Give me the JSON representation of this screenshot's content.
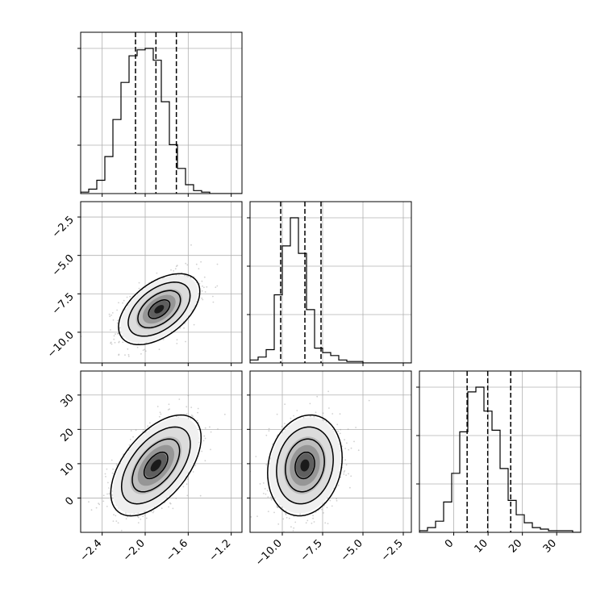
{
  "chart_data": {
    "type": "corner",
    "grid": true,
    "columns": [
      {
        "ticks": [
          "−2.4",
          "−2.0",
          "−1.6",
          "−1.2"
        ],
        "tick_values": [
          -2.4,
          -2.0,
          -1.6,
          -1.2
        ],
        "range": [
          -2.6,
          -1.1
        ]
      },
      {
        "ticks": [
          "−10.0",
          "−7.5",
          "−5.0",
          "−2.5"
        ],
        "tick_values": [
          -10.0,
          -7.5,
          -5.0,
          -2.5
        ],
        "range": [
          -12.0,
          -2.0
        ]
      },
      {
        "ticks": [
          "0",
          "10",
          "20",
          "30"
        ],
        "tick_values": [
          0,
          10,
          20,
          30
        ],
        "range": [
          -10,
          37
        ]
      }
    ],
    "row_tick_labels": [
      {
        "row": 1,
        "ticks": [
          "−2.5",
          "−5.0",
          "−7.5",
          "−10.0"
        ],
        "tick_values": [
          -2.5,
          -5.0,
          -7.5,
          -10.0
        ],
        "range": [
          -12.0,
          -1.5
        ]
      },
      {
        "row": 2,
        "ticks": [
          "30",
          "20",
          "10",
          "0"
        ],
        "tick_values": [
          30,
          20,
          10,
          0
        ],
        "range": [
          -10,
          37
        ]
      }
    ],
    "marginals": [
      {
        "param_index": 0,
        "bin_start": -2.6,
        "bin_width": 0.075,
        "counts": [
          1,
          3,
          9,
          25,
          50,
          75,
          93,
          97,
          98,
          90,
          62,
          33,
          17,
          6,
          2,
          1,
          0,
          0,
          0,
          0
        ],
        "quantiles": [
          -2.09,
          -1.9,
          -1.71
        ]
      },
      {
        "param_index": 1,
        "bin_start": -12.0,
        "bin_width": 0.5,
        "counts": [
          2,
          4,
          9,
          46,
          79,
          98,
          74,
          36,
          10,
          7,
          5,
          2,
          1,
          1,
          0,
          0,
          0,
          0,
          0,
          0
        ],
        "quantiles": [
          -10.1,
          -8.6,
          -7.6
        ]
      },
      {
        "param_index": 2,
        "bin_start": -10,
        "bin_width": 2.35,
        "counts": [
          1,
          3,
          7,
          19,
          37,
          63,
          88,
          91,
          76,
          64,
          40,
          20,
          11,
          6,
          3,
          2,
          1,
          1,
          1,
          0
        ],
        "quantiles": [
          3.9,
          9.9,
          16.6
        ]
      }
    ],
    "joint": [
      {
        "row": 1,
        "col": 0,
        "mean": [
          -1.87,
          -8.5
        ],
        "sd": [
          0.18,
          1.1
        ],
        "corr": 0.5
      },
      {
        "row": 2,
        "col": 0,
        "mean": [
          -1.9,
          9.5
        ],
        "sd": [
          0.2,
          7.0
        ],
        "corr": 0.55
      },
      {
        "row": 2,
        "col": 1,
        "mean": [
          -8.6,
          9.5
        ],
        "sd": [
          1.1,
          7.0
        ],
        "corr": 0.15
      }
    ]
  }
}
